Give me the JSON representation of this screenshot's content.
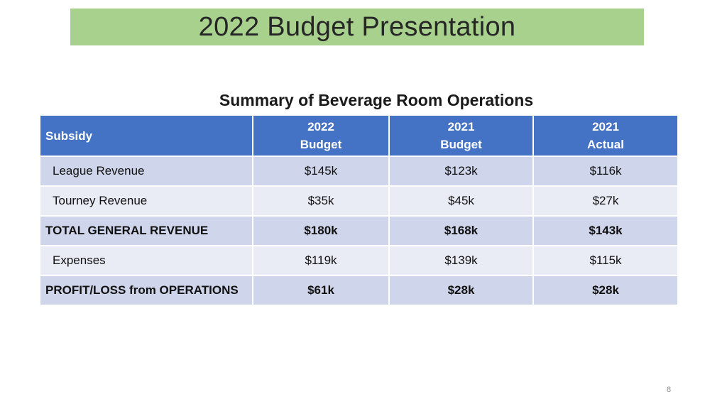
{
  "slide": {
    "title": "2022 Budget Presentation",
    "subtitle": "Summary of Beverage Room Operations",
    "page_number": "8"
  },
  "table": {
    "header": {
      "col0": "Subsidy",
      "col1_line1": "2022",
      "col1_line2": "Budget",
      "col2_line1": "2021",
      "col2_line2": "Budget",
      "col3_line1": "2021",
      "col3_line2": "Actual"
    },
    "rows": [
      {
        "label": "League Revenue",
        "b2022": "$145k",
        "b2021": "$123k",
        "a2021": "$116k"
      },
      {
        "label": "Tourney Revenue",
        "b2022": "$35k",
        "b2021": "$45k",
        "a2021": "$27k"
      },
      {
        "label": "TOTAL GENERAL REVENUE",
        "b2022": "$180k",
        "b2021": "$168k",
        "a2021": "$143k"
      },
      {
        "label": "Expenses",
        "b2022": "$119k",
        "b2021": "$139k",
        "a2021": "$115k"
      },
      {
        "label": "PROFIT/LOSS from OPERATIONS",
        "b2022": "$61k",
        "b2021": "$28k",
        "a2021": "$28k"
      }
    ]
  },
  "colors": {
    "title_bar": "#a9d18e",
    "header_bg": "#4472c4",
    "row_dark": "#cfd5ea",
    "row_light": "#e9ebf5"
  }
}
